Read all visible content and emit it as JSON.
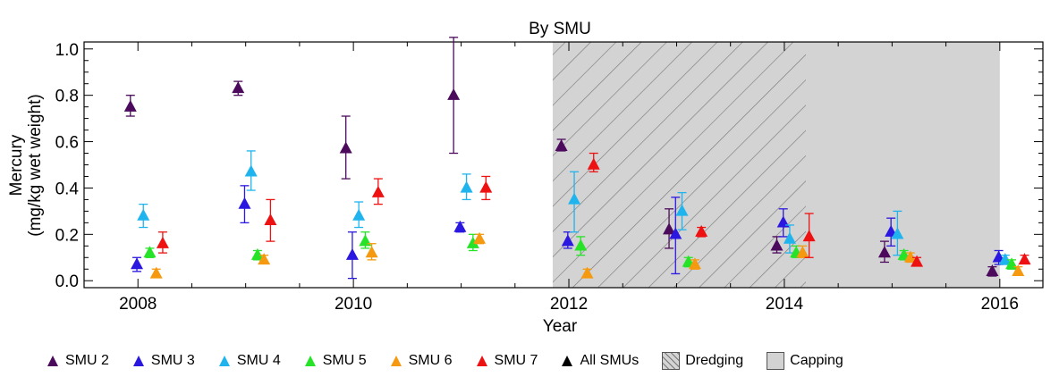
{
  "chart_data": {
    "type": "scatter",
    "title": "By SMU",
    "xlabel": "Year",
    "ylabel_line1": "Mercury",
    "ylabel_line2": "(mg/kg wet weight)",
    "xlim": [
      2007.5,
      2016.4
    ],
    "ylim": [
      -0.03,
      1.03
    ],
    "xticks": [
      2008,
      2010,
      2012,
      2014,
      2016
    ],
    "xtick_labels": [
      "2008",
      "2010",
      "2012",
      "2014",
      "2016"
    ],
    "yticks": [
      0.0,
      0.2,
      0.4,
      0.6,
      0.8,
      1.0
    ],
    "ytick_labels": [
      "0.0",
      "0.2",
      "0.4",
      "0.6",
      "0.8",
      "1.0"
    ],
    "shaded_regions": [
      {
        "name": "Dredging",
        "x_start": 2011.85,
        "x_end": 2014.2,
        "color": "#d3d3d3",
        "hatch": true
      },
      {
        "name": "Capping",
        "x_start": 2014.2,
        "x_end": 2016.0,
        "color": "#d3d3d3",
        "hatch": false
      }
    ],
    "series": [
      {
        "name": "SMU 2",
        "color": "#4b0a5c",
        "points": [
          {
            "x": 2007.93,
            "y": 0.75,
            "lo": 0.71,
            "hi": 0.8
          },
          {
            "x": 2008.93,
            "y": 0.83,
            "lo": 0.8,
            "hi": 0.86
          },
          {
            "x": 2009.93,
            "y": 0.57,
            "lo": 0.44,
            "hi": 0.71
          },
          {
            "x": 2010.93,
            "y": 0.8,
            "lo": 0.55,
            "hi": 1.05
          },
          {
            "x": 2011.93,
            "y": 0.58,
            "lo": 0.56,
            "hi": 0.61
          },
          {
            "x": 2012.93,
            "y": 0.22,
            "lo": 0.14,
            "hi": 0.31
          },
          {
            "x": 2013.93,
            "y": 0.15,
            "lo": 0.12,
            "hi": 0.19
          },
          {
            "x": 2014.93,
            "y": 0.12,
            "lo": 0.08,
            "hi": 0.17
          },
          {
            "x": 2015.93,
            "y": 0.04,
            "lo": 0.02,
            "hi": 0.06
          }
        ]
      },
      {
        "name": "SMU 3",
        "color": "#2a17e0",
        "points": [
          {
            "x": 2007.99,
            "y": 0.07,
            "lo": 0.04,
            "hi": 0.1
          },
          {
            "x": 2008.99,
            "y": 0.33,
            "lo": 0.25,
            "hi": 0.41
          },
          {
            "x": 2009.99,
            "y": 0.11,
            "lo": 0.01,
            "hi": 0.21
          },
          {
            "x": 2010.99,
            "y": 0.23,
            "lo": 0.21,
            "hi": 0.25
          },
          {
            "x": 2011.99,
            "y": 0.17,
            "lo": 0.14,
            "hi": 0.21
          },
          {
            "x": 2012.99,
            "y": 0.2,
            "lo": 0.03,
            "hi": 0.36
          },
          {
            "x": 2013.99,
            "y": 0.25,
            "lo": 0.19,
            "hi": 0.31
          },
          {
            "x": 2014.99,
            "y": 0.21,
            "lo": 0.15,
            "hi": 0.27
          },
          {
            "x": 2015.99,
            "y": 0.1,
            "lo": 0.07,
            "hi": 0.13
          }
        ]
      },
      {
        "name": "SMU 4",
        "color": "#1fb4ee",
        "points": [
          {
            "x": 2008.05,
            "y": 0.28,
            "lo": 0.23,
            "hi": 0.33
          },
          {
            "x": 2009.05,
            "y": 0.47,
            "lo": 0.39,
            "hi": 0.56
          },
          {
            "x": 2010.05,
            "y": 0.28,
            "lo": 0.23,
            "hi": 0.34
          },
          {
            "x": 2011.05,
            "y": 0.4,
            "lo": 0.35,
            "hi": 0.46
          },
          {
            "x": 2012.05,
            "y": 0.35,
            "lo": 0.21,
            "hi": 0.47
          },
          {
            "x": 2013.05,
            "y": 0.3,
            "lo": 0.22,
            "hi": 0.38
          },
          {
            "x": 2014.05,
            "y": 0.18,
            "lo": 0.12,
            "hi": 0.24
          },
          {
            "x": 2015.05,
            "y": 0.2,
            "lo": 0.11,
            "hi": 0.3
          },
          {
            "x": 2016.05,
            "y": 0.09,
            "lo": 0.07,
            "hi": 0.11
          }
        ]
      },
      {
        "name": "SMU 5",
        "color": "#27e327",
        "points": [
          {
            "x": 2008.11,
            "y": 0.12,
            "lo": 0.1,
            "hi": 0.14
          },
          {
            "x": 2009.11,
            "y": 0.11,
            "lo": 0.09,
            "hi": 0.13
          },
          {
            "x": 2010.11,
            "y": 0.17,
            "lo": 0.14,
            "hi": 0.21
          },
          {
            "x": 2011.11,
            "y": 0.16,
            "lo": 0.13,
            "hi": 0.2
          },
          {
            "x": 2012.11,
            "y": 0.15,
            "lo": 0.11,
            "hi": 0.19
          },
          {
            "x": 2013.11,
            "y": 0.08,
            "lo": 0.06,
            "hi": 0.1
          },
          {
            "x": 2014.11,
            "y": 0.12,
            "lo": 0.1,
            "hi": 0.15
          },
          {
            "x": 2015.11,
            "y": 0.11,
            "lo": 0.09,
            "hi": 0.13
          },
          {
            "x": 2016.11,
            "y": 0.07,
            "lo": 0.05,
            "hi": 0.09
          }
        ]
      },
      {
        "name": "SMU 6",
        "color": "#f59a10",
        "points": [
          {
            "x": 2008.17,
            "y": 0.03,
            "lo": 0.02,
            "hi": 0.05
          },
          {
            "x": 2009.17,
            "y": 0.09,
            "lo": 0.08,
            "hi": 0.11
          },
          {
            "x": 2010.17,
            "y": 0.12,
            "lo": 0.09,
            "hi": 0.16
          },
          {
            "x": 2011.17,
            "y": 0.18,
            "lo": 0.16,
            "hi": 0.2
          },
          {
            "x": 2012.17,
            "y": 0.03,
            "lo": 0.02,
            "hi": 0.05
          },
          {
            "x": 2013.17,
            "y": 0.07,
            "lo": 0.05,
            "hi": 0.09
          },
          {
            "x": 2014.17,
            "y": 0.12,
            "lo": 0.1,
            "hi": 0.15
          },
          {
            "x": 2015.17,
            "y": 0.1,
            "lo": 0.08,
            "hi": 0.12
          },
          {
            "x": 2016.17,
            "y": 0.04,
            "lo": 0.03,
            "hi": 0.06
          }
        ]
      },
      {
        "name": "SMU 7",
        "color": "#ee1111",
        "points": [
          {
            "x": 2008.23,
            "y": 0.16,
            "lo": 0.12,
            "hi": 0.21
          },
          {
            "x": 2009.23,
            "y": 0.26,
            "lo": 0.17,
            "hi": 0.35
          },
          {
            "x": 2010.23,
            "y": 0.38,
            "lo": 0.33,
            "hi": 0.44
          },
          {
            "x": 2011.23,
            "y": 0.4,
            "lo": 0.35,
            "hi": 0.45
          },
          {
            "x": 2012.23,
            "y": 0.5,
            "lo": 0.47,
            "hi": 0.55
          },
          {
            "x": 2013.23,
            "y": 0.21,
            "lo": 0.19,
            "hi": 0.23
          },
          {
            "x": 2014.23,
            "y": 0.19,
            "lo": 0.1,
            "hi": 0.29
          },
          {
            "x": 2015.23,
            "y": 0.08,
            "lo": 0.07,
            "hi": 0.1
          },
          {
            "x": 2016.23,
            "y": 0.09,
            "lo": 0.08,
            "hi": 0.11
          }
        ]
      },
      {
        "name": "All SMUs",
        "color": "#000000",
        "points": []
      }
    ],
    "legend": [
      {
        "label": "SMU 2",
        "kind": "triangle",
        "color": "#4b0a5c"
      },
      {
        "label": "SMU 3",
        "kind": "triangle",
        "color": "#2a17e0"
      },
      {
        "label": "SMU 4",
        "kind": "triangle",
        "color": "#1fb4ee"
      },
      {
        "label": "SMU 5",
        "kind": "triangle",
        "color": "#27e327"
      },
      {
        "label": "SMU 6",
        "kind": "triangle",
        "color": "#f59a10"
      },
      {
        "label": "SMU 7",
        "kind": "triangle",
        "color": "#ee1111"
      },
      {
        "label": "All SMUs",
        "kind": "triangle",
        "color": "#000000"
      },
      {
        "label": "Dredging",
        "kind": "hatch",
        "color": "#d3d3d3"
      },
      {
        "label": "Capping",
        "kind": "fill",
        "color": "#d3d3d3"
      }
    ],
    "legend_position": "bottom"
  }
}
